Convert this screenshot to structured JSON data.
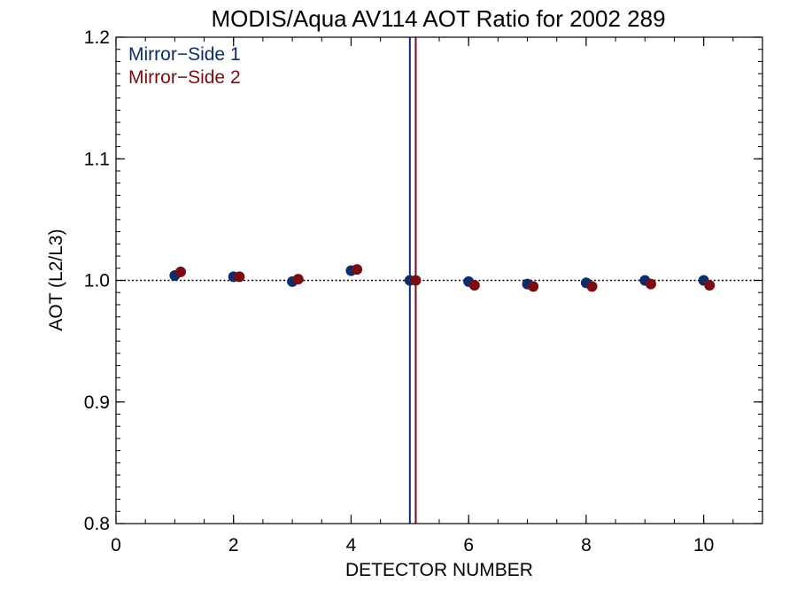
{
  "chart_data": {
    "type": "scatter",
    "title": "MODIS/Aqua AV114 AOT Ratio for 2002 289",
    "xlabel": "DETECTOR NUMBER",
    "ylabel": "AOT (L2/L3)",
    "xlim": [
      0,
      11
    ],
    "ylim": [
      0.8,
      1.2
    ],
    "x_ticks": [
      0,
      2,
      4,
      6,
      8,
      10
    ],
    "x_tick_labels": [
      "0",
      "2",
      "4",
      "6",
      "8",
      "10"
    ],
    "y_ticks": [
      0.8,
      0.9,
      1.0,
      1.1,
      1.2
    ],
    "y_tick_labels": [
      "0.8",
      "0.9",
      "1.0",
      "1.1",
      "1.2"
    ],
    "x_minor_step": 0.5,
    "y_minor_step": 0.01,
    "reference_line": {
      "y": 1.0,
      "style": "dotted"
    },
    "vertical_lines": [
      {
        "x": 5.0,
        "color": "#0d2c6b"
      },
      {
        "x": 5.1,
        "color": "#7a0c12"
      }
    ],
    "legend_position": "top-left",
    "series": [
      {
        "name": "Mirror−Side 1",
        "color": "#0d2c6b",
        "x": [
          1,
          2,
          3,
          4,
          5,
          6,
          7,
          8,
          9,
          10
        ],
        "y": [
          1.004,
          1.003,
          0.999,
          1.008,
          1.0,
          0.999,
          0.997,
          0.998,
          1.0,
          1.0
        ]
      },
      {
        "name": "Mirror−Side 2",
        "color": "#7a0c12",
        "x": [
          1.1,
          2.1,
          3.1,
          4.1,
          5.1,
          6.1,
          7.1,
          8.1,
          9.1,
          10.1
        ],
        "y": [
          1.007,
          1.003,
          1.001,
          1.009,
          1.0,
          0.996,
          0.995,
          0.995,
          0.997,
          0.996
        ]
      }
    ]
  }
}
